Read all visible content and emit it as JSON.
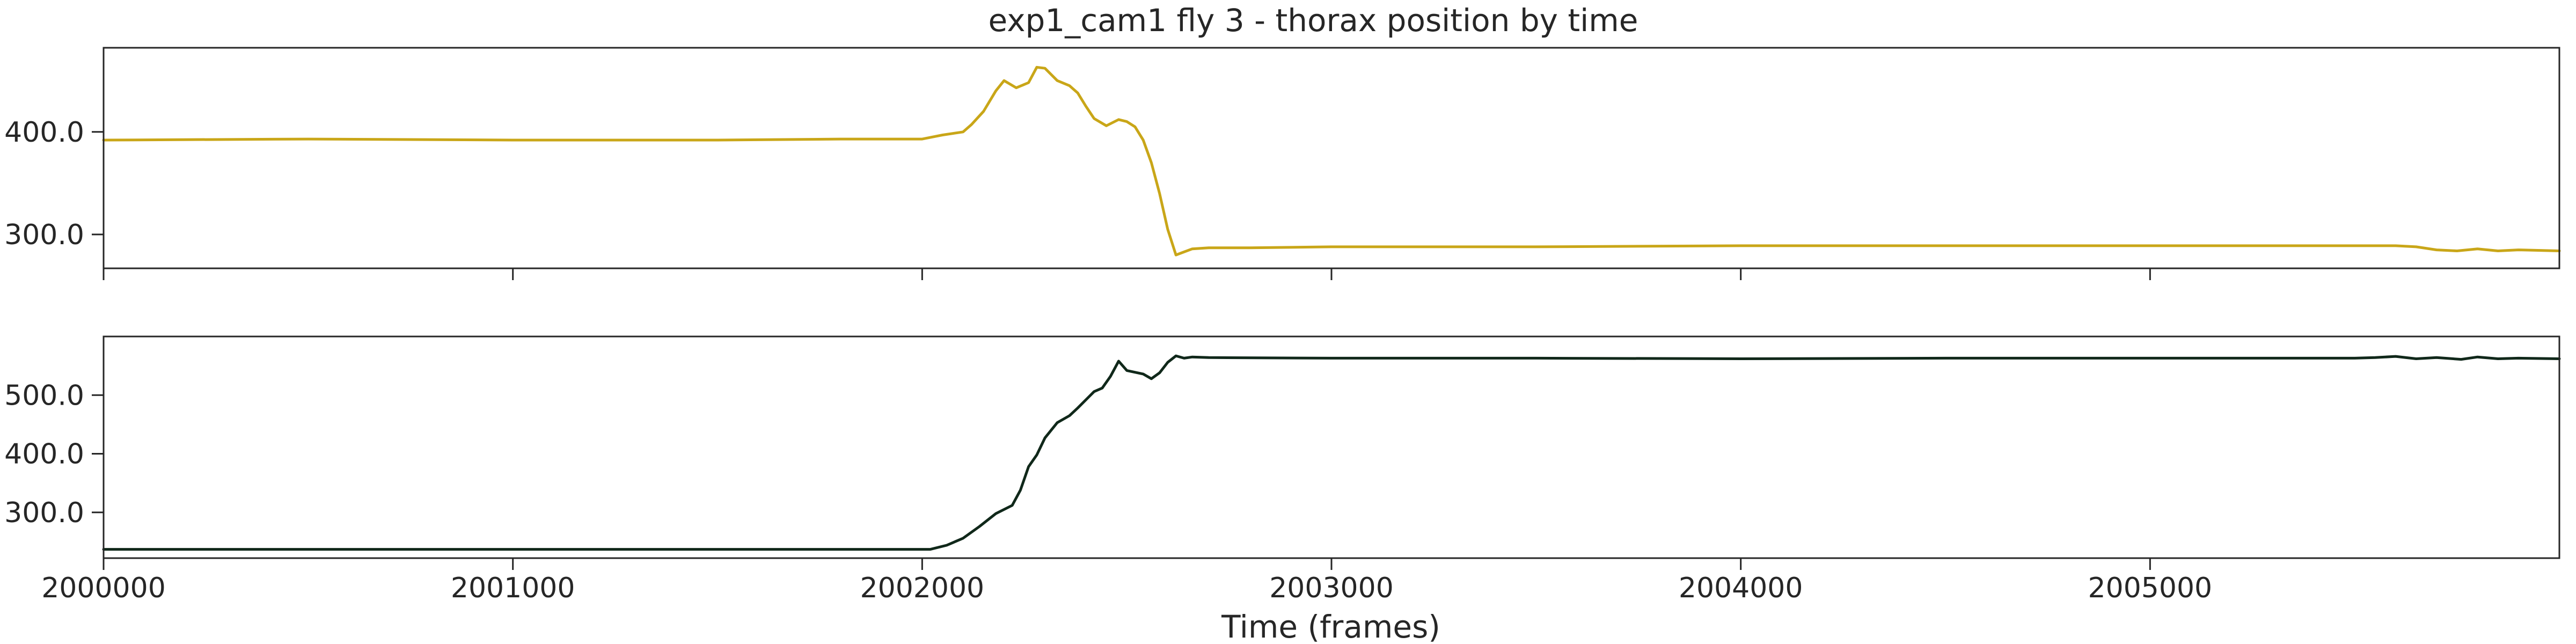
{
  "chart_data": [
    {
      "type": "line",
      "title": "exp1_cam1 fly 3 - thorax position by time",
      "xlabel": "",
      "ylabel": "",
      "xlim": [
        2000000,
        2006000
      ],
      "ylim": [
        267,
        482
      ],
      "x_ticks": [
        2000000,
        2001000,
        2002000,
        2003000,
        2004000,
        2005000
      ],
      "y_ticks": [
        300,
        400
      ],
      "y_tick_labels": [
        "300.0",
        "400.0"
      ],
      "x_tick_labels_shown": false,
      "grid": false,
      "series": [
        {
          "color": "#c9a618",
          "x": [
            2000000,
            2000500,
            2001000,
            2001500,
            2001800,
            2002000,
            2002050,
            2002100,
            2002120,
            2002150,
            2002180,
            2002200,
            2002230,
            2002260,
            2002280,
            2002300,
            2002330,
            2002360,
            2002380,
            2002400,
            2002420,
            2002450,
            2002480,
            2002500,
            2002520,
            2002540,
            2002560,
            2002580,
            2002600,
            2002620,
            2002640,
            2002660,
            2002700,
            2002800,
            2003000,
            2003500,
            2004000,
            2004500,
            2005000,
            2005500,
            2005600,
            2005650,
            2005700,
            2005750,
            2005800,
            2005850,
            2005900,
            2006000
          ],
          "values": [
            392,
            393,
            392,
            392,
            393,
            393,
            397,
            400,
            407,
            420,
            440,
            450,
            443,
            448,
            463,
            462,
            450,
            445,
            438,
            425,
            413,
            406,
            412,
            410,
            405,
            392,
            370,
            340,
            305,
            280,
            283,
            286,
            287,
            287,
            288,
            288,
            289,
            289,
            289,
            289,
            289,
            288,
            285,
            284,
            286,
            284,
            285,
            284
          ]
        }
      ]
    },
    {
      "type": "line",
      "xlabel": "Time (frames)",
      "ylabel": "",
      "xlim": [
        2000000,
        2006000
      ],
      "ylim": [
        222,
        600
      ],
      "x_ticks": [
        2000000,
        2001000,
        2002000,
        2003000,
        2004000,
        2005000
      ],
      "x_tick_labels": [
        "2000000",
        "2001000",
        "2002000",
        "2003000",
        "2004000",
        "2005000"
      ],
      "y_ticks": [
        300,
        400,
        500
      ],
      "y_tick_labels": [
        "300.0",
        "400.0",
        "500.0"
      ],
      "grid": false,
      "series": [
        {
          "color": "#10281a",
          "x": [
            2000000,
            2001000,
            2002000,
            2002020,
            2002060,
            2002100,
            2002140,
            2002180,
            2002220,
            2002240,
            2002260,
            2002280,
            2002300,
            2002330,
            2002360,
            2002380,
            2002400,
            2002420,
            2002440,
            2002460,
            2002480,
            2002500,
            2002540,
            2002560,
            2002580,
            2002600,
            2002620,
            2002640,
            2002660,
            2002700,
            2003000,
            2003500,
            2004000,
            2004500,
            2005000,
            2005500,
            2005550,
            2005600,
            2005650,
            2005700,
            2005760,
            2005800,
            2005850,
            2005900,
            2006000
          ],
          "values": [
            237,
            237,
            237,
            237,
            244,
            256,
            276,
            298,
            312,
            338,
            378,
            398,
            427,
            453,
            465,
            478,
            492,
            506,
            512,
            532,
            558,
            542,
            536,
            528,
            538,
            556,
            567,
            563,
            565,
            564,
            563,
            563,
            562,
            563,
            563,
            563,
            564,
            566,
            562,
            564,
            561,
            565,
            562,
            563,
            562
          ]
        }
      ]
    }
  ]
}
